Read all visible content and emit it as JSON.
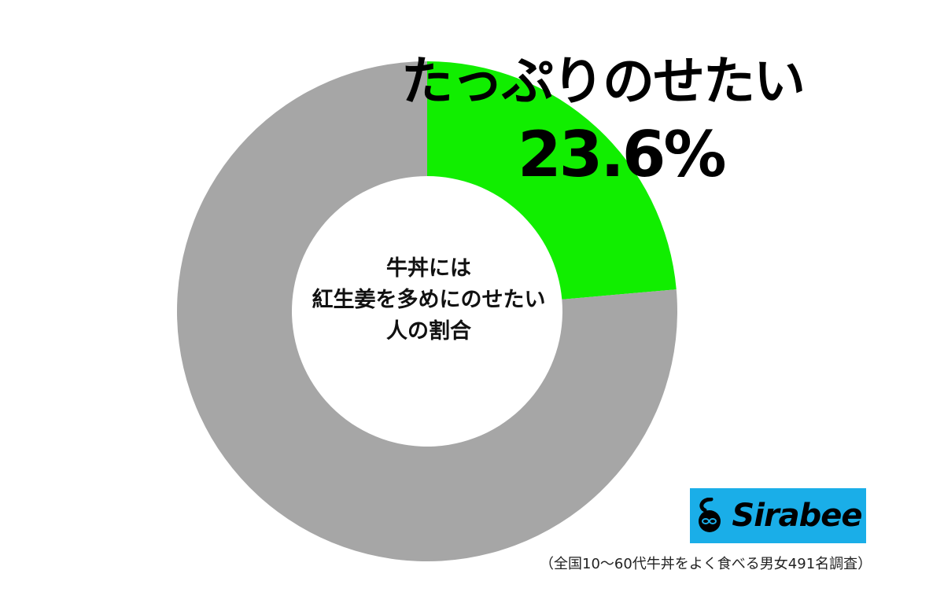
{
  "chart_data": {
    "type": "pie",
    "title": "牛丼には紅生姜を多めにのせたい人の割合",
    "title_lines": [
      "牛丼には",
      "紅生姜を多めにのせたい",
      "人の割合"
    ],
    "slices": [
      {
        "label": "たっぷりのせたい",
        "value": 23.6,
        "value_label": "23.6%",
        "color": "#11ee00"
      },
      {
        "label": "",
        "value": 76.4,
        "color": "#a6a6a6"
      }
    ],
    "style": "donut",
    "start": "top"
  },
  "logo": {
    "text": "Sirabee",
    "color": "#1aaee8"
  },
  "source_note": "（全国10～60代牛丼をよく食べる男女491名調査）"
}
